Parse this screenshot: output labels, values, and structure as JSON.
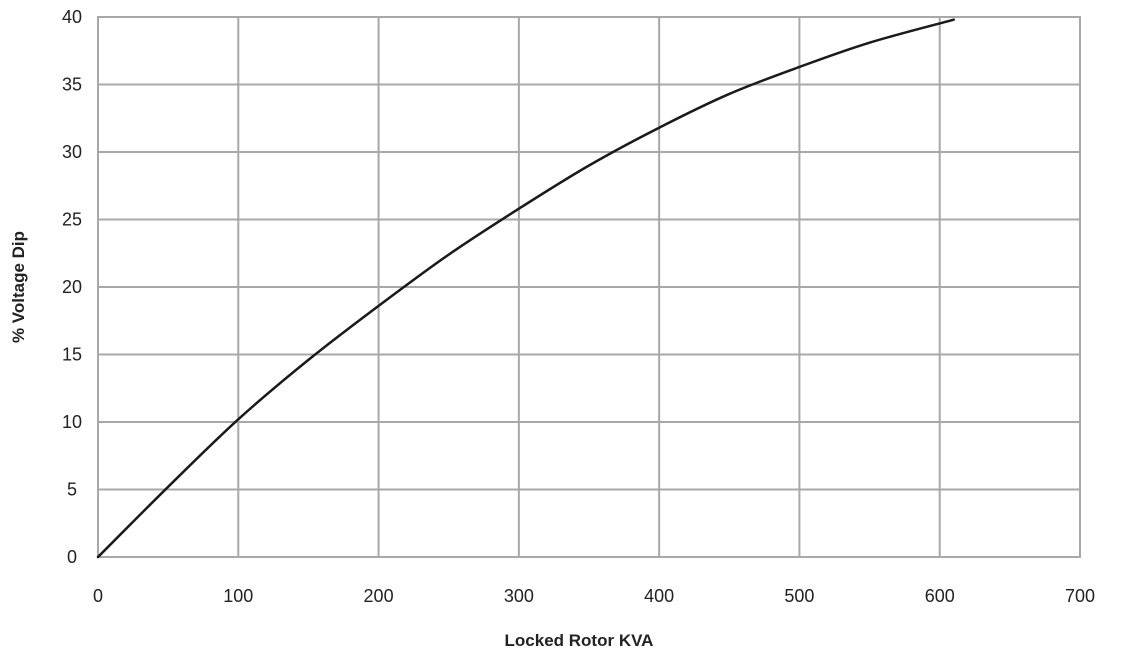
{
  "chart_data": {
    "type": "line",
    "title": "",
    "xlabel": "Locked Rotor KVA",
    "ylabel": "% Voltage Dip",
    "xlim": [
      0,
      700
    ],
    "ylim": [
      0,
      40
    ],
    "x_ticks": [
      0,
      100,
      200,
      300,
      400,
      500,
      600,
      700
    ],
    "y_ticks": [
      0,
      5,
      10,
      15,
      20,
      25,
      30,
      35,
      40
    ],
    "grid": true,
    "series": [
      {
        "x": [
          0,
          50,
          100,
          150,
          200,
          250,
          300,
          350,
          400,
          450,
          500,
          550,
          610
        ],
        "y": [
          0,
          5.2,
          10.2,
          14.6,
          18.6,
          22.4,
          25.8,
          29.0,
          31.8,
          34.3,
          36.3,
          38.1,
          39.8
        ]
      }
    ]
  }
}
